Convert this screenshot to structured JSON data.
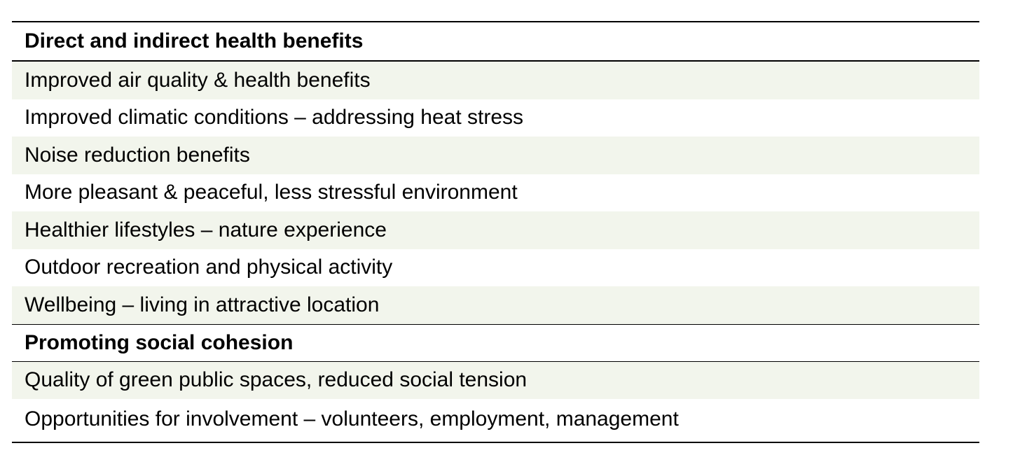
{
  "colors": {
    "row_shade": "#f2f5ec",
    "rule": "#000000",
    "text": "#000000"
  },
  "sections": [
    {
      "title": "Direct and indirect health benefits",
      "rows": [
        "Improved air quality & health benefits",
        "Improved climatic conditions – addressing heat stress",
        "Noise reduction benefits",
        "More pleasant & peaceful, less stressful environment",
        "Healthier lifestyles – nature experience",
        "Outdoor recreation and physical activity",
        "Wellbeing – living in attractive location"
      ]
    },
    {
      "title": "Promoting social cohesion",
      "rows": [
        "Quality of green public spaces, reduced social tension",
        "Opportunities for involvement – volunteers, employment, management"
      ]
    }
  ]
}
